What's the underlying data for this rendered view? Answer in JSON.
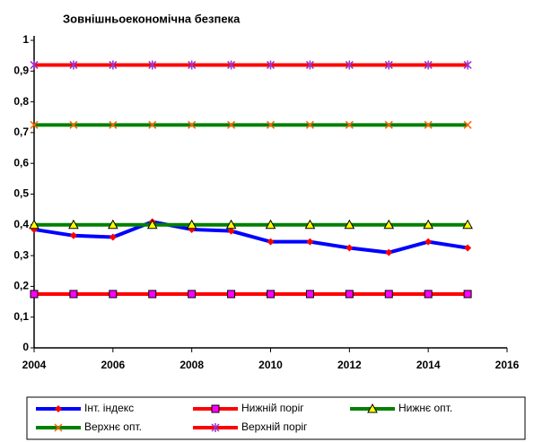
{
  "chart_data": {
    "type": "line",
    "title": "Зовнішньоекономічна безпека",
    "x": [
      2004,
      2005,
      2006,
      2007,
      2008,
      2009,
      2010,
      2011,
      2012,
      2013,
      2014,
      2015
    ],
    "xlim": [
      2004,
      2016
    ],
    "xticks": [
      2004,
      2006,
      2008,
      2010,
      2012,
      2014,
      2016
    ],
    "ylim": [
      0,
      1
    ],
    "yticks": [
      0,
      {
        "value": 0.1,
        "label": "0,1"
      },
      {
        "value": 0.2,
        "label": "0,2"
      },
      {
        "value": 0.3,
        "label": "0,3"
      },
      {
        "value": 0.4,
        "label": "0,4"
      },
      {
        "value": 0.5,
        "label": "0,5"
      },
      {
        "value": 0.6,
        "label": "0,6"
      },
      {
        "value": 0.7,
        "label": "0,7"
      },
      {
        "value": 0.8,
        "label": "0,8"
      },
      {
        "value": 0.9,
        "label": "0,9"
      },
      1
    ],
    "grid": false,
    "legend": "bottom",
    "series": [
      {
        "name": "Інт. індекс",
        "color": "#0000ff",
        "marker": "diamond",
        "marker_color": "#ff0000",
        "values": [
          0.385,
          0.365,
          0.36,
          0.41,
          0.385,
          0.38,
          0.345,
          0.345,
          0.325,
          0.31,
          0.345,
          0.325
        ]
      },
      {
        "name": "Нижній поріг",
        "color": "#ff0000",
        "marker": "square",
        "marker_color": "#ff00ff",
        "values": [
          0.175,
          0.175,
          0.175,
          0.175,
          0.175,
          0.175,
          0.175,
          0.175,
          0.175,
          0.175,
          0.175,
          0.175
        ]
      },
      {
        "name": "Нижнє опт.",
        "color": "#008000",
        "marker": "triangle",
        "marker_color": "#ffff00",
        "values": [
          0.4,
          0.4,
          0.4,
          0.4,
          0.4,
          0.4,
          0.4,
          0.4,
          0.4,
          0.4,
          0.4,
          0.4
        ]
      },
      {
        "name": "Верхнє опт.",
        "color": "#008000",
        "marker": "x",
        "marker_color": "#ff6600",
        "values": [
          0.725,
          0.725,
          0.725,
          0.725,
          0.725,
          0.725,
          0.725,
          0.725,
          0.725,
          0.725,
          0.725,
          0.725
        ]
      },
      {
        "name": "Верхній поріг",
        "color": "#ff0000",
        "marker": "star",
        "marker_color": "#9933cc",
        "values": [
          0.92,
          0.92,
          0.92,
          0.92,
          0.92,
          0.92,
          0.92,
          0.92,
          0.92,
          0.92,
          0.92,
          0.92
        ]
      }
    ]
  }
}
